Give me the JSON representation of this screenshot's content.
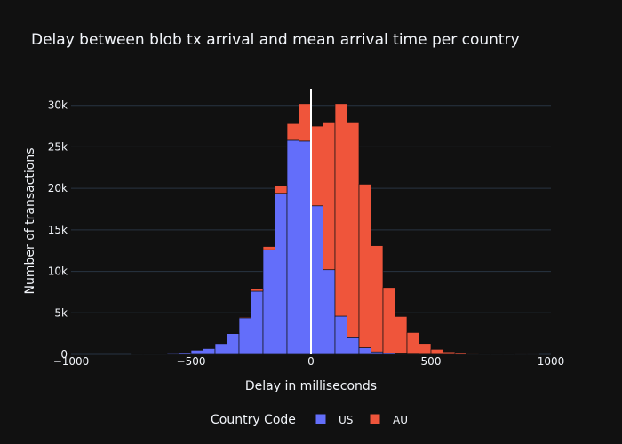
{
  "chart_data": {
    "type": "bar",
    "barmode": "stack",
    "title": "Delay between blob tx arrival and mean arrival time per country",
    "xlabel": "Delay in milliseconds",
    "ylabel": "Number of transactions",
    "xlim": [
      -1000,
      1000
    ],
    "ylim": [
      0,
      32000
    ],
    "bin_width": 50,
    "x_ticks": [
      -1000,
      -500,
      0,
      500,
      1000
    ],
    "x_tick_labels": [
      "−1000",
      "−500",
      "0",
      "500",
      "1000"
    ],
    "y_ticks": [
      0,
      5000,
      10000,
      15000,
      20000,
      25000,
      30000
    ],
    "y_tick_labels": [
      "0",
      "5k",
      "10k",
      "15k",
      "20k",
      "25k",
      "30k"
    ],
    "grid": true,
    "vline_x": 0,
    "bin_starts": [
      -1000,
      -950,
      -900,
      -850,
      -800,
      -750,
      -700,
      -650,
      -600,
      -550,
      -500,
      -450,
      -400,
      -350,
      -300,
      -250,
      -200,
      -150,
      -100,
      -50,
      0,
      50,
      100,
      150,
      200,
      250,
      300,
      350,
      400,
      450,
      500,
      550,
      600,
      650,
      700,
      750,
      800,
      850,
      900,
      950
    ],
    "series": [
      {
        "name": "US",
        "color": "#636efa",
        "values": [
          0,
          0,
          0,
          0,
          0,
          20,
          30,
          50,
          100,
          250,
          500,
          700,
          1300,
          2500,
          4400,
          7600,
          12600,
          19400,
          25800,
          25700,
          17900,
          10200,
          4600,
          2000,
          800,
          300,
          150,
          60,
          30,
          15,
          10,
          5,
          0,
          0,
          0,
          0,
          0,
          0,
          0,
          0
        ]
      },
      {
        "name": "AU",
        "color": "#ef553b",
        "values": [
          0,
          0,
          0,
          0,
          0,
          0,
          0,
          0,
          0,
          0,
          0,
          0,
          0,
          50,
          100,
          300,
          400,
          900,
          2000,
          4500,
          9600,
          17800,
          25600,
          26000,
          19700,
          12800,
          7900,
          4500,
          2600,
          1300,
          600,
          300,
          150,
          80,
          50,
          30,
          20,
          10,
          5,
          0
        ]
      }
    ],
    "legend": {
      "title": "Country Code",
      "entries": [
        "US",
        "AU"
      ],
      "position": "bottom"
    },
    "colors": {
      "background": "#111111",
      "grid": "#283442",
      "text": "#f2f5fa",
      "bar_edge": "#111111",
      "vline": "#ffffff"
    }
  }
}
